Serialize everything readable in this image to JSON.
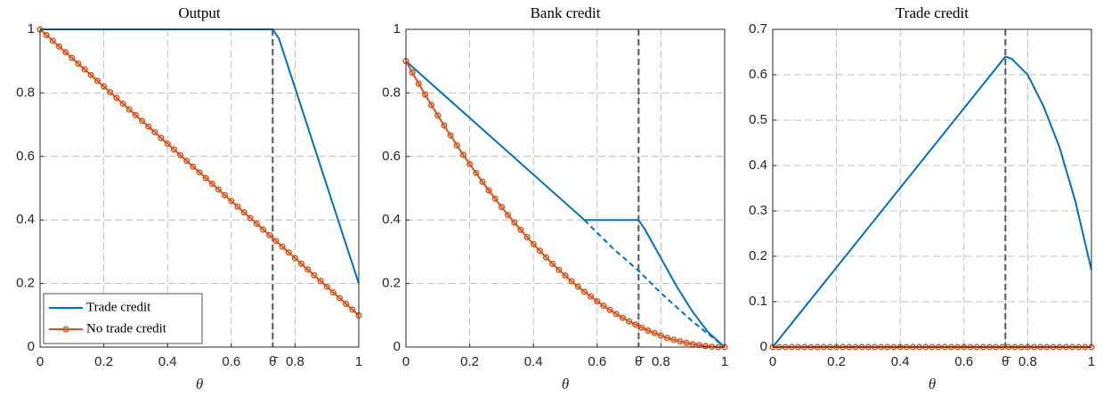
{
  "chart_data": [
    {
      "type": "line",
      "title": "Output",
      "x_label": "θ",
      "xlim": [
        0,
        1
      ],
      "ylim": [
        0,
        1
      ],
      "xticks": [
        0,
        0.2,
        0.4,
        0.6,
        {
          "value": 0.73,
          "label": "θ̄"
        },
        0.8,
        1
      ],
      "yticks": [
        0,
        0.2,
        0.4,
        0.6,
        0.8,
        1
      ],
      "grid": true,
      "vline": 0.73,
      "legend": "lower left",
      "series": [
        {
          "name": "Trade credit",
          "color": "#0072bd",
          "x": [
            0,
            0.73,
            0.75,
            1
          ],
          "values": [
            1,
            1,
            0.97,
            0.2
          ]
        },
        {
          "name": "No trade credit",
          "color": "#d95319",
          "marker": "o",
          "x": [
            0,
            0.02,
            0.04,
            0.06,
            0.08,
            0.1,
            0.12,
            0.14,
            0.16,
            0.18,
            0.2,
            0.22,
            0.24,
            0.26,
            0.28,
            0.3,
            0.32,
            0.34,
            0.36,
            0.38,
            0.4,
            0.42,
            0.44,
            0.46,
            0.48,
            0.5,
            0.52,
            0.54,
            0.56,
            0.58,
            0.6,
            0.62,
            0.64,
            0.66,
            0.68,
            0.7,
            0.72,
            0.74,
            0.76,
            0.78,
            0.8,
            0.82,
            0.84,
            0.86,
            0.88,
            0.9,
            0.92,
            0.94,
            0.96,
            0.98,
            1
          ],
          "values": [
            1,
            0.982,
            0.964,
            0.946,
            0.928,
            0.91,
            0.892,
            0.874,
            0.856,
            0.838,
            0.82,
            0.802,
            0.784,
            0.766,
            0.748,
            0.73,
            0.712,
            0.694,
            0.676,
            0.658,
            0.64,
            0.622,
            0.604,
            0.586,
            0.568,
            0.55,
            0.532,
            0.514,
            0.496,
            0.478,
            0.46,
            0.442,
            0.424,
            0.406,
            0.388,
            0.37,
            0.352,
            0.334,
            0.316,
            0.298,
            0.28,
            0.262,
            0.244,
            0.226,
            0.208,
            0.19,
            0.172,
            0.154,
            0.136,
            0.118,
            0.1
          ]
        }
      ]
    },
    {
      "type": "line",
      "title": "Bank credit",
      "x_label": "θ",
      "xlim": [
        0,
        1
      ],
      "ylim": [
        0,
        1
      ],
      "xticks": [
        0,
        0.2,
        0.4,
        0.6,
        {
          "value": 0.73,
          "label": "θ̄"
        },
        0.8,
        1
      ],
      "yticks": [
        0,
        0.2,
        0.4,
        0.6,
        0.8,
        1
      ],
      "grid": true,
      "vline": 0.73,
      "series": [
        {
          "name": "Trade credit",
          "color": "#0072bd",
          "x": [
            0,
            0.56,
            0.73,
            0.75,
            0.8,
            0.85,
            0.9,
            0.95,
            1
          ],
          "values": [
            0.9,
            0.4,
            0.4,
            0.37,
            0.28,
            0.19,
            0.11,
            0.045,
            0
          ]
        },
        {
          "color": "#0072bd",
          "dash": true,
          "x": [
            0.56,
            0.65,
            0.73,
            0.8,
            0.9,
            1
          ],
          "values": [
            0.4,
            0.31,
            0.24,
            0.17,
            0.08,
            0
          ]
        },
        {
          "name": "No trade credit",
          "color": "#d95319",
          "marker": "o",
          "x": [
            0,
            0.02,
            0.04,
            0.06,
            0.08,
            0.1,
            0.12,
            0.14,
            0.16,
            0.18,
            0.2,
            0.22,
            0.24,
            0.26,
            0.28,
            0.3,
            0.32,
            0.34,
            0.36,
            0.38,
            0.4,
            0.42,
            0.44,
            0.46,
            0.48,
            0.5,
            0.52,
            0.54,
            0.56,
            0.58,
            0.6,
            0.62,
            0.64,
            0.66,
            0.68,
            0.7,
            0.72,
            0.74,
            0.76,
            0.78,
            0.8,
            0.82,
            0.84,
            0.86,
            0.88,
            0.9,
            0.92,
            0.94,
            0.96,
            0.98,
            1
          ],
          "values": [
            0.9,
            0.864,
            0.829,
            0.795,
            0.762,
            0.729,
            0.697,
            0.666,
            0.635,
            0.605,
            0.576,
            0.548,
            0.52,
            0.493,
            0.467,
            0.441,
            0.416,
            0.392,
            0.369,
            0.346,
            0.324,
            0.303,
            0.282,
            0.262,
            0.243,
            0.225,
            0.207,
            0.19,
            0.174,
            0.159,
            0.144,
            0.13,
            0.117,
            0.104,
            0.092,
            0.081,
            0.071,
            0.061,
            0.052,
            0.044,
            0.036,
            0.029,
            0.023,
            0.018,
            0.013,
            0.009,
            0.006,
            0.003,
            0.001,
            0,
            0
          ]
        }
      ]
    },
    {
      "type": "line",
      "title": "Trade credit",
      "x_label": "θ",
      "xlim": [
        0,
        1
      ],
      "ylim": [
        0,
        0.7
      ],
      "xticks": [
        0,
        0.2,
        0.4,
        0.6,
        {
          "value": 0.73,
          "label": "θ̄"
        },
        0.8,
        1
      ],
      "yticks": [
        0,
        0.1,
        0.2,
        0.3,
        0.4,
        0.5,
        0.6,
        0.7
      ],
      "grid": true,
      "vline": 0.73,
      "series": [
        {
          "name": "Trade credit",
          "color": "#0072bd",
          "x": [
            0,
            0.73,
            0.75,
            0.8,
            0.85,
            0.9,
            0.95,
            1
          ],
          "values": [
            0,
            0.64,
            0.635,
            0.6,
            0.53,
            0.44,
            0.32,
            0.17
          ]
        },
        {
          "name": "No trade credit",
          "color": "#d95319",
          "marker": "o",
          "x": [
            0,
            0.02,
            0.04,
            0.06,
            0.08,
            0.1,
            0.12,
            0.14,
            0.16,
            0.18,
            0.2,
            0.22,
            0.24,
            0.26,
            0.28,
            0.3,
            0.32,
            0.34,
            0.36,
            0.38,
            0.4,
            0.42,
            0.44,
            0.46,
            0.48,
            0.5,
            0.52,
            0.54,
            0.56,
            0.58,
            0.6,
            0.62,
            0.64,
            0.66,
            0.68,
            0.7,
            0.72,
            0.74,
            0.76,
            0.78,
            0.8,
            0.82,
            0.84,
            0.86,
            0.88,
            0.9,
            0.92,
            0.94,
            0.96,
            0.98,
            1
          ],
          "values": [
            0,
            0,
            0,
            0,
            0,
            0,
            0,
            0,
            0,
            0,
            0,
            0,
            0,
            0,
            0,
            0,
            0,
            0,
            0,
            0,
            0,
            0,
            0,
            0,
            0,
            0,
            0,
            0,
            0,
            0,
            0,
            0,
            0,
            0,
            0,
            0,
            0,
            0,
            0,
            0,
            0,
            0,
            0,
            0,
            0,
            0,
            0,
            0,
            0,
            0,
            0
          ]
        }
      ]
    }
  ]
}
